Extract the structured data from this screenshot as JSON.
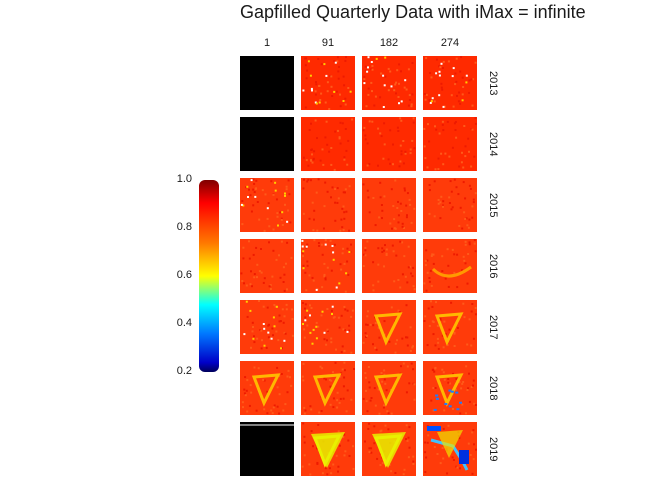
{
  "title": "Gapfilled Quarterly Data with iMax = infinite",
  "chart_data": {
    "type": "heatmap",
    "title": "Gapfilled Quarterly Data with iMax = infinite",
    "columns": [
      "1",
      "91",
      "182",
      "274"
    ],
    "rows": [
      "2013",
      "2014",
      "2015",
      "2016",
      "2017",
      "2018",
      "2019"
    ],
    "colorbar": {
      "min": 0.2,
      "max": 1.0,
      "ticks": [
        "1.0",
        "0.8",
        "0.6",
        "0.4",
        "0.2"
      ],
      "colors": [
        "#00005a",
        "#0000c8",
        "#0078ff",
        "#00ffff",
        "#ffff00",
        "#ff7a00",
        "#ff0000",
        "#7f0000"
      ]
    },
    "missing_color": "#000000",
    "missing_tiles": [
      [
        0,
        0
      ],
      [
        1,
        0
      ],
      [
        6,
        0
      ]
    ],
    "tile_feature": {
      "0": [
        "specks",
        "specks",
        "specks",
        "specks"
      ],
      "1": [
        "plain",
        "plain",
        "plain",
        "plain"
      ],
      "2": [
        "specks",
        "plain",
        "plain",
        "plain"
      ],
      "3": [
        "plain",
        "specks",
        "plain",
        "arc"
      ],
      "4": [
        "specks",
        "specks",
        "v",
        "v"
      ],
      "5": [
        "v",
        "v",
        "v",
        "v-blue"
      ],
      "6": [
        "none",
        "v-yellow",
        "v-yellow",
        "blue"
      ]
    }
  }
}
